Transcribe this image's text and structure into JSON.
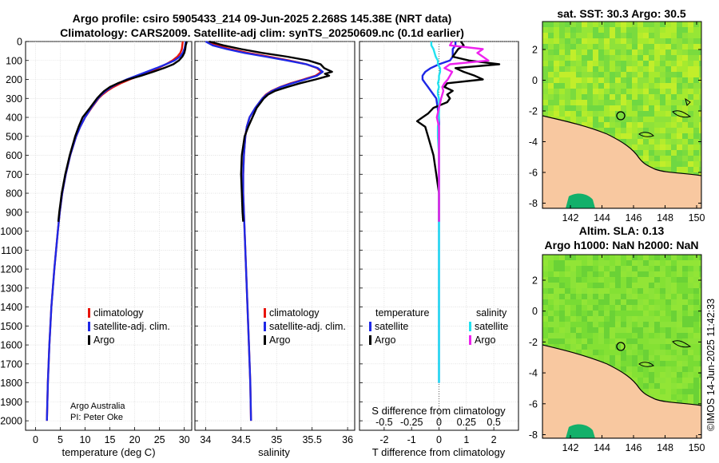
{
  "colors": {
    "climatology": "#e8140a",
    "satellite_adj": "#1e28e6",
    "argo": "#000000",
    "temp_satellite": "#1e28e6",
    "sal_satellite": "#22e2f0",
    "sal_argo": "#ee22ee",
    "land": "#f8c8a0",
    "sea_green": "#7ee033"
  },
  "header": {
    "title_line1": "Argo profile: csiro 5905433_214 09-Jun-2025 2.268S 145.38E (NRT data)",
    "title_line2": "Climatology: CARS2009. Satellite-adj clim: synTS_20250609.nc (0.1d earlier)"
  },
  "credit": {
    "line1": "Argo Australia",
    "line2": "PI: Peter Oke"
  },
  "timestamp": "©IMOS 14-Jun-2025 11:42:33",
  "maps": {
    "sst_title": "sat. SST: 30.3 Argo: 30.5",
    "sla_title_line1": "Altim. SLA: 0.13",
    "sla_title_line2": "Argo h1000: NaN h2000: NaN",
    "lon_ticks": [
      "142",
      "144",
      "146",
      "148",
      "150"
    ],
    "sst_lat_ticks": [
      "2",
      "0",
      "-2",
      "-4",
      "-6",
      "-8"
    ],
    "sla_lat_ticks": [
      "2",
      "0",
      "-2",
      "-4",
      "-6",
      "-8"
    ],
    "float_position": {
      "lon": 145.38,
      "lat": -2.268
    }
  },
  "chart_data": [
    {
      "type": "line",
      "panel": "temperature",
      "xlabel": "temperature (deg C)",
      "ylabel": "",
      "xlim": [
        -2,
        31.5
      ],
      "ylim": [
        2050,
        0
      ],
      "x_ticks": [
        0,
        5,
        10,
        15,
        20,
        25,
        30
      ],
      "x_tick_labels": [
        "0",
        "5",
        "10",
        "15",
        "20",
        "25",
        "30"
      ],
      "y_ticks": [
        0,
        100,
        200,
        300,
        400,
        500,
        600,
        700,
        800,
        900,
        1000,
        1100,
        1200,
        1300,
        1400,
        1500,
        1600,
        1700,
        1800,
        1900,
        2000
      ],
      "y_tick_labels": [
        "0",
        "100",
        "200",
        "300",
        "400",
        "500",
        "600",
        "700",
        "800",
        "900",
        "1000",
        "1100",
        "1200",
        "1300",
        "1400",
        "1500",
        "1600",
        "1700",
        "1800",
        "1900",
        "2000"
      ],
      "legend": [
        "climatology",
        "satellite-adj. clim.",
        "Argo"
      ],
      "legend_position": "lower-right",
      "series": [
        {
          "name": "climatology",
          "depth": [
            0,
            20,
            40,
            60,
            80,
            100,
            120,
            140,
            160,
            180,
            200,
            220,
            240,
            260,
            280,
            300,
            350,
            400,
            450,
            500,
            600,
            700,
            800,
            900,
            1000,
            1200,
            1400,
            1600,
            1800,
            2000
          ],
          "values": [
            29.7,
            29.6,
            29.5,
            29.2,
            28.6,
            27.6,
            26.3,
            24.7,
            22.9,
            21.0,
            19.0,
            17.2,
            15.7,
            14.5,
            13.5,
            12.7,
            11.3,
            10.0,
            9.0,
            8.2,
            7.0,
            6.1,
            5.4,
            4.9,
            4.5,
            3.8,
            3.2,
            2.8,
            2.5,
            2.3
          ]
        },
        {
          "name": "satellite-adj. clim.",
          "depth": [
            0,
            20,
            40,
            60,
            80,
            100,
            120,
            140,
            160,
            180,
            200,
            220,
            240,
            260,
            280,
            300,
            350,
            400,
            450,
            500,
            600,
            700,
            800,
            900,
            1000,
            1200,
            1400,
            1600,
            1800,
            2000
          ],
          "values": [
            30.3,
            30.2,
            30.0,
            29.7,
            29.1,
            28.0,
            26.3,
            24.4,
            22.4,
            20.4,
            18.4,
            16.7,
            15.3,
            14.2,
            13.3,
            12.6,
            11.2,
            10.0,
            9.0,
            8.2,
            7.0,
            6.1,
            5.4,
            4.9,
            4.5,
            3.8,
            3.2,
            2.8,
            2.5,
            2.3
          ]
        },
        {
          "name": "Argo",
          "depth": [
            0,
            10,
            20,
            40,
            60,
            80,
            100,
            120,
            140,
            160,
            180,
            200,
            220,
            240,
            260,
            280,
            300,
            350,
            400,
            450,
            500,
            600,
            700,
            800,
            900,
            950
          ],
          "values": [
            30.5,
            30.4,
            30.3,
            30.2,
            30.0,
            29.6,
            28.9,
            27.8,
            25.9,
            23.7,
            21.3,
            18.7,
            16.6,
            15.0,
            13.9,
            13.1,
            12.4,
            11.0,
            9.5,
            8.7,
            8.0,
            6.9,
            6.0,
            5.3,
            4.8,
            4.6
          ]
        }
      ]
    },
    {
      "type": "line",
      "panel": "salinity",
      "xlabel": "salinity",
      "xlim": [
        33.85,
        36.1
      ],
      "ylim": [
        2050,
        0
      ],
      "x_ticks": [
        34,
        34.5,
        35,
        35.5,
        36
      ],
      "x_tick_labels": [
        "34",
        "34.5",
        "35",
        "35.5",
        "36"
      ],
      "legend": [
        "climatology",
        "satellite-adj. clim.",
        "Argo"
      ],
      "legend_position": "lower-right",
      "series": [
        {
          "name": "climatology",
          "depth": [
            0,
            20,
            40,
            60,
            80,
            100,
            120,
            140,
            160,
            180,
            200,
            220,
            240,
            260,
            280,
            300,
            350,
            400,
            450,
            500,
            600,
            700,
            800,
            900,
            1000,
            1200,
            1400,
            1600,
            1800,
            2000
          ],
          "values": [
            34.05,
            34.15,
            34.35,
            34.6,
            34.9,
            35.18,
            35.42,
            35.57,
            35.63,
            35.55,
            35.38,
            35.2,
            35.05,
            34.93,
            34.85,
            34.8,
            34.7,
            34.62,
            34.58,
            34.56,
            34.54,
            34.53,
            34.53,
            34.54,
            34.55,
            34.57,
            34.59,
            34.61,
            34.63,
            34.64
          ]
        },
        {
          "name": "satellite-adj. clim.",
          "depth": [
            0,
            20,
            40,
            60,
            80,
            100,
            120,
            140,
            160,
            180,
            200,
            220,
            240,
            260,
            280,
            300,
            350,
            400,
            450,
            500,
            600,
            700,
            800,
            900,
            1000,
            1200,
            1400,
            1600,
            1800,
            2000
          ],
          "values": [
            34.0,
            34.1,
            34.3,
            34.55,
            34.85,
            35.15,
            35.42,
            35.58,
            35.65,
            35.57,
            35.4,
            35.22,
            35.06,
            34.94,
            34.86,
            34.8,
            34.7,
            34.62,
            34.58,
            34.56,
            34.54,
            34.53,
            34.53,
            34.54,
            34.55,
            34.57,
            34.59,
            34.61,
            34.63,
            34.64
          ]
        },
        {
          "name": "Argo",
          "depth": [
            0,
            10,
            20,
            40,
            60,
            80,
            100,
            120,
            140,
            160,
            170,
            180,
            200,
            220,
            240,
            260,
            280,
            300,
            320,
            350,
            400,
            450,
            500,
            600,
            700,
            800,
            900,
            950
          ],
          "values": [
            34.05,
            34.15,
            34.25,
            34.5,
            34.8,
            35.15,
            35.45,
            35.62,
            35.67,
            35.78,
            35.68,
            35.74,
            35.55,
            35.33,
            35.15,
            34.98,
            34.88,
            34.82,
            34.78,
            34.72,
            34.66,
            34.6,
            34.55,
            34.51,
            34.5,
            34.51,
            34.52,
            34.53
          ]
        }
      ]
    },
    {
      "type": "line",
      "panel": "difference",
      "xlabel": "T difference from climatology",
      "top_xlabel": "S difference from climatology",
      "xlim": [
        -2.9,
        2.9
      ],
      "ylim": [
        2050,
        0
      ],
      "x_ticks": [
        -2,
        -1,
        0,
        1,
        2
      ],
      "x_tick_labels": [
        "-2",
        "-1",
        "0",
        "1",
        "2"
      ],
      "s_ticks": [
        -0.5,
        -0.25,
        0,
        0.25,
        0.5
      ],
      "s_tick_labels": [
        "-0.5",
        "-0.25",
        "0",
        "0.25",
        "0.5"
      ],
      "s_scale": 4,
      "legend_temperature_heading": "temperature",
      "legend_salinity_heading": "salinity",
      "legend_temperature": [
        "satellite",
        "Argo"
      ],
      "legend_salinity": [
        "satellite",
        "Argo"
      ],
      "series": [
        {
          "name": "temperature satellite",
          "depth": [
            0,
            20,
            40,
            60,
            80,
            100,
            120,
            140,
            160,
            180,
            200,
            220,
            240,
            260,
            280,
            300,
            350,
            400,
            450,
            500,
            600,
            700,
            800,
            900,
            1000,
            1200,
            1400,
            1600,
            1800
          ],
          "values": [
            0.6,
            0.6,
            0.5,
            0.5,
            0.5,
            0.4,
            0.0,
            -0.3,
            -0.5,
            -0.6,
            -0.6,
            -0.5,
            -0.4,
            -0.3,
            -0.2,
            -0.1,
            -0.05,
            0.0,
            0.0,
            0.0,
            0.0,
            0.0,
            0.0,
            0.0,
            0.0,
            0.0,
            0.0,
            0.0,
            0.0
          ]
        },
        {
          "name": "temperature Argo",
          "depth": [
            0,
            20,
            40,
            60,
            80,
            100,
            120,
            140,
            160,
            180,
            200,
            220,
            240,
            260,
            280,
            300,
            320,
            350,
            380,
            400,
            420,
            450,
            500,
            600,
            700,
            800,
            900,
            950
          ],
          "values": [
            0.8,
            0.9,
            0.7,
            0.6,
            0.5,
            1.1,
            2.2,
            0.6,
            0.9,
            1.3,
            1.6,
            0.3,
            0.2,
            0.5,
            0.3,
            0.4,
            0.3,
            -0.2,
            -0.4,
            -0.6,
            -0.8,
            -0.5,
            -0.4,
            -0.2,
            -0.1,
            0.0,
            0.0,
            0.0
          ]
        },
        {
          "name": "salinity satellite",
          "depth": [
            0,
            20,
            40,
            60,
            80,
            100,
            120,
            140,
            160,
            180,
            200,
            220,
            240,
            260,
            280,
            300,
            350,
            400,
            450,
            500,
            600,
            700,
            800,
            900,
            1000,
            1200,
            1400,
            1600,
            1800
          ],
          "values": [
            -0.07,
            -0.07,
            -0.05,
            -0.04,
            -0.03,
            -0.01,
            -0.01,
            0.01,
            0.01,
            0.0,
            0.0,
            -0.01,
            0.0,
            -0.01,
            -0.01,
            0.0,
            0.0,
            0.0,
            -0.01,
            -0.01,
            0.0,
            0.0,
            0.0,
            0.0,
            0.0,
            0.0,
            0.0,
            0.0,
            0.0
          ]
        },
        {
          "name": "salinity Argo",
          "depth": [
            0,
            20,
            40,
            60,
            80,
            100,
            120,
            140,
            160,
            180,
            200,
            220,
            240,
            260,
            280,
            300,
            350,
            400,
            450,
            500,
            600,
            700,
            800,
            900,
            950
          ],
          "values": [
            0.12,
            0.1,
            0.4,
            0.35,
            0.4,
            0.45,
            0.1,
            0.05,
            0.12,
            0.1,
            0.08,
            0.05,
            0.03,
            0.04,
            0.03,
            0.02,
            0.0,
            -0.02,
            0.0,
            0.0,
            0.0,
            0.0,
            0.0,
            0.0,
            0.0
          ]
        }
      ]
    }
  ]
}
